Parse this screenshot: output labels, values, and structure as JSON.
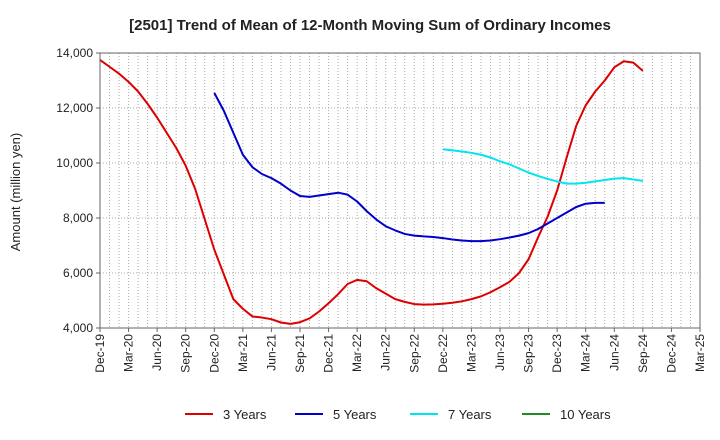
{
  "chart_data": {
    "type": "line",
    "title": "[2501]  Trend of Mean of 12-Month Moving Sum of Ordinary Incomes",
    "xlabel": "",
    "ylabel": "Amount (million yen)",
    "ylim": [
      4000,
      14000
    ],
    "yticks": [
      4000,
      6000,
      8000,
      10000,
      12000,
      14000
    ],
    "ytick_labels": [
      "4,000",
      "6,000",
      "8,000",
      "10,000",
      "12,000",
      "14,000"
    ],
    "xticks": [
      "Dec-19",
      "Mar-20",
      "Jun-20",
      "Sep-20",
      "Dec-20",
      "Mar-21",
      "Jun-21",
      "Sep-21",
      "Dec-21",
      "Mar-22",
      "Jun-22",
      "Sep-22",
      "Dec-22",
      "Mar-23",
      "Jun-23",
      "Sep-23",
      "Dec-23",
      "Mar-24",
      "Jun-24",
      "Sep-24",
      "Dec-24",
      "Mar-25"
    ],
    "grid": true,
    "legend_position": "bottom",
    "series": [
      {
        "name": "3 Years",
        "color": "#dd0000",
        "start_index": 0,
        "values": [
          13750,
          13500,
          13250,
          12950,
          12600,
          12150,
          11650,
          11100,
          10550,
          9900,
          9050,
          7950,
          6850,
          5950,
          5050,
          4700,
          4420,
          4380,
          4320,
          4200,
          4150,
          4210,
          4350,
          4600,
          4900,
          5230,
          5600,
          5750,
          5700,
          5450,
          5250,
          5050,
          4950,
          4870,
          4850,
          4860,
          4880,
          4920,
          4970,
          5050,
          5150,
          5300,
          5480,
          5680,
          6000,
          6500,
          7300,
          8050,
          9000,
          10200,
          11350,
          12100,
          12600,
          13000,
          13480,
          13700,
          13650,
          13350
        ]
      },
      {
        "name": "5 Years",
        "color": "#0000cc",
        "start_index": 12,
        "values": [
          12550,
          11900,
          11100,
          10300,
          9850,
          9600,
          9450,
          9250,
          9000,
          8800,
          8770,
          8820,
          8870,
          8920,
          8850,
          8600,
          8250,
          7950,
          7700,
          7550,
          7420,
          7360,
          7330,
          7310,
          7270,
          7220,
          7180,
          7160,
          7160,
          7180,
          7230,
          7290,
          7360,
          7450,
          7600,
          7800,
          8000,
          8200,
          8400,
          8520,
          8550,
          8550
        ]
      },
      {
        "name": "7 Years",
        "color": "#00e5ee",
        "start_index": 36,
        "values": [
          10500,
          10460,
          10420,
          10370,
          10300,
          10200,
          10060,
          9950,
          9800,
          9650,
          9530,
          9420,
          9330,
          9250,
          9250,
          9280,
          9330,
          9380,
          9430,
          9450,
          9400,
          9350
        ]
      },
      {
        "name": "10 Years",
        "color": "#228b22",
        "start_index": 0,
        "values": []
      }
    ]
  }
}
